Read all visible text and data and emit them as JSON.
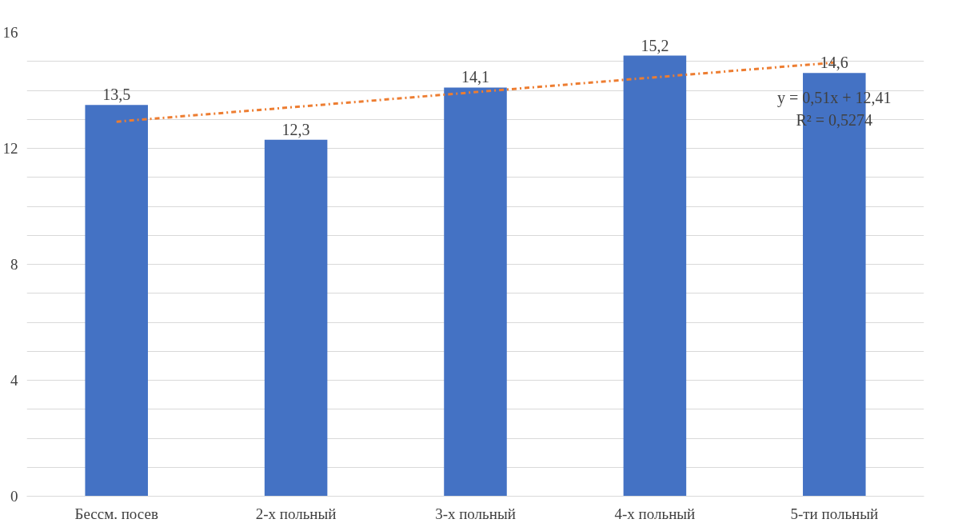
{
  "chart_data": {
    "type": "bar",
    "categories": [
      "Бессм. посев",
      "2-х польный",
      "3-х польный",
      "4-х польный",
      "5-ти польный"
    ],
    "series": [
      {
        "color": "#4472c4",
        "values": [
          13.5,
          12.3,
          14.1,
          15.2,
          14.6
        ],
        "value_labels": [
          "13,5",
          "12,3",
          "14,1",
          "15,2",
          "14,6"
        ]
      },
      {
        "type": "line",
        "color": "#ed7d31",
        "line_style": "dashdot",
        "x": [
          "Бессм. посев",
          "5-ти польный"
        ],
        "values": [
          12.92,
          14.96
        ]
      }
    ],
    "ylim": [
      0,
      16
    ],
    "yticks": [
      0,
      {
        "value": 1,
        "label": null
      },
      {
        "value": 2,
        "label": null
      },
      {
        "value": 3,
        "label": null
      },
      4,
      {
        "value": 5,
        "label": null
      },
      {
        "value": 6,
        "label": null
      },
      {
        "value": 7,
        "label": null
      },
      8,
      {
        "value": 9,
        "label": null
      },
      {
        "value": 10,
        "label": null
      },
      {
        "value": 11,
        "label": null
      },
      12,
      {
        "value": 13,
        "label": null
      },
      {
        "value": 14,
        "label": null
      },
      {
        "value": 15,
        "label": null
      },
      16
    ],
    "grid": "y",
    "annotations": [
      "y = 0,51x + 12,41",
      "R² = 0,5274"
    ]
  }
}
